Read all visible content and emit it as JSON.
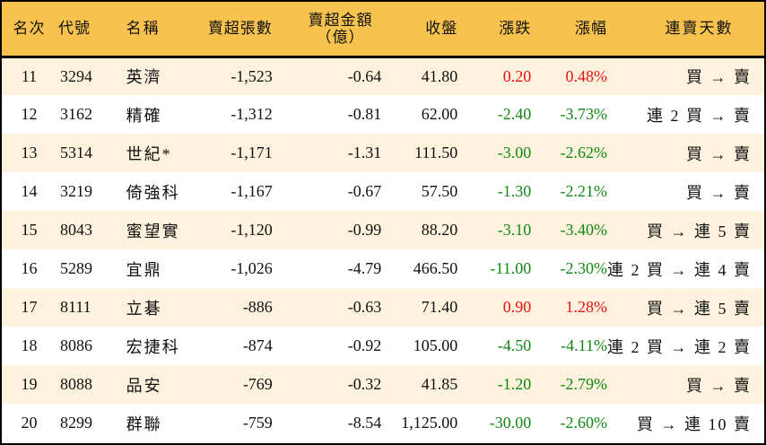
{
  "colors": {
    "header_bg": "#F8C24F",
    "row_odd_bg": "#FDF2DD",
    "row_even_bg": "#FFFFFF",
    "up": "#EE1111",
    "down": "#118811",
    "border": "#000000"
  },
  "header": {
    "rank": "名次",
    "code": "代號",
    "name": "名稱",
    "net_sell_volume": "賣超張數",
    "net_sell_amount_line1": "賣超金額",
    "net_sell_amount_line2": "（億）",
    "close": "收盤",
    "change": "漲跌",
    "change_pct": "漲幅",
    "streak": "連賣天數"
  },
  "rows": [
    {
      "rank": "11",
      "code": "3294",
      "name": "英濟",
      "volume": "-1,523",
      "amount": "-0.64",
      "close": "41.80",
      "change": "0.20",
      "change_pct": "0.48%",
      "direction": "up",
      "streak": "買 → 賣"
    },
    {
      "rank": "12",
      "code": "3162",
      "name": "精確",
      "volume": "-1,312",
      "amount": "-0.81",
      "close": "62.00",
      "change": "-2.40",
      "change_pct": "-3.73%",
      "direction": "down",
      "streak": "連 2 買 → 賣"
    },
    {
      "rank": "13",
      "code": "5314",
      "name": "世紀*",
      "volume": "-1,171",
      "amount": "-1.31",
      "close": "111.50",
      "change": "-3.00",
      "change_pct": "-2.62%",
      "direction": "down",
      "streak": "買 → 賣"
    },
    {
      "rank": "14",
      "code": "3219",
      "name": "倚強科",
      "volume": "-1,167",
      "amount": "-0.67",
      "close": "57.50",
      "change": "-1.30",
      "change_pct": "-2.21%",
      "direction": "down",
      "streak": "買 → 賣"
    },
    {
      "rank": "15",
      "code": "8043",
      "name": "蜜望實",
      "volume": "-1,120",
      "amount": "-0.99",
      "close": "88.20",
      "change": "-3.10",
      "change_pct": "-3.40%",
      "direction": "down",
      "streak": "買 → 連 5 賣"
    },
    {
      "rank": "16",
      "code": "5289",
      "name": "宜鼎",
      "volume": "-1,026",
      "amount": "-4.79",
      "close": "466.50",
      "change": "-11.00",
      "change_pct": "-2.30%",
      "direction": "down",
      "streak": "連 2 買 → 連 4 賣"
    },
    {
      "rank": "17",
      "code": "8111",
      "name": "立碁",
      "volume": "-886",
      "amount": "-0.63",
      "close": "71.40",
      "change": "0.90",
      "change_pct": "1.28%",
      "direction": "up",
      "streak": "買 → 連 5 賣"
    },
    {
      "rank": "18",
      "code": "8086",
      "name": "宏捷科",
      "volume": "-874",
      "amount": "-0.92",
      "close": "105.00",
      "change": "-4.50",
      "change_pct": "-4.11%",
      "direction": "down",
      "streak": "連 2 買 → 連 2 賣"
    },
    {
      "rank": "19",
      "code": "8088",
      "name": "品安",
      "volume": "-769",
      "amount": "-0.32",
      "close": "41.85",
      "change": "-1.20",
      "change_pct": "-2.79%",
      "direction": "down",
      "streak": "買 → 賣"
    },
    {
      "rank": "20",
      "code": "8299",
      "name": "群聯",
      "volume": "-759",
      "amount": "-8.54",
      "close": "1,125.00",
      "change": "-30.00",
      "change_pct": "-2.60%",
      "direction": "down",
      "streak": "買 → 連 10 賣"
    }
  ]
}
